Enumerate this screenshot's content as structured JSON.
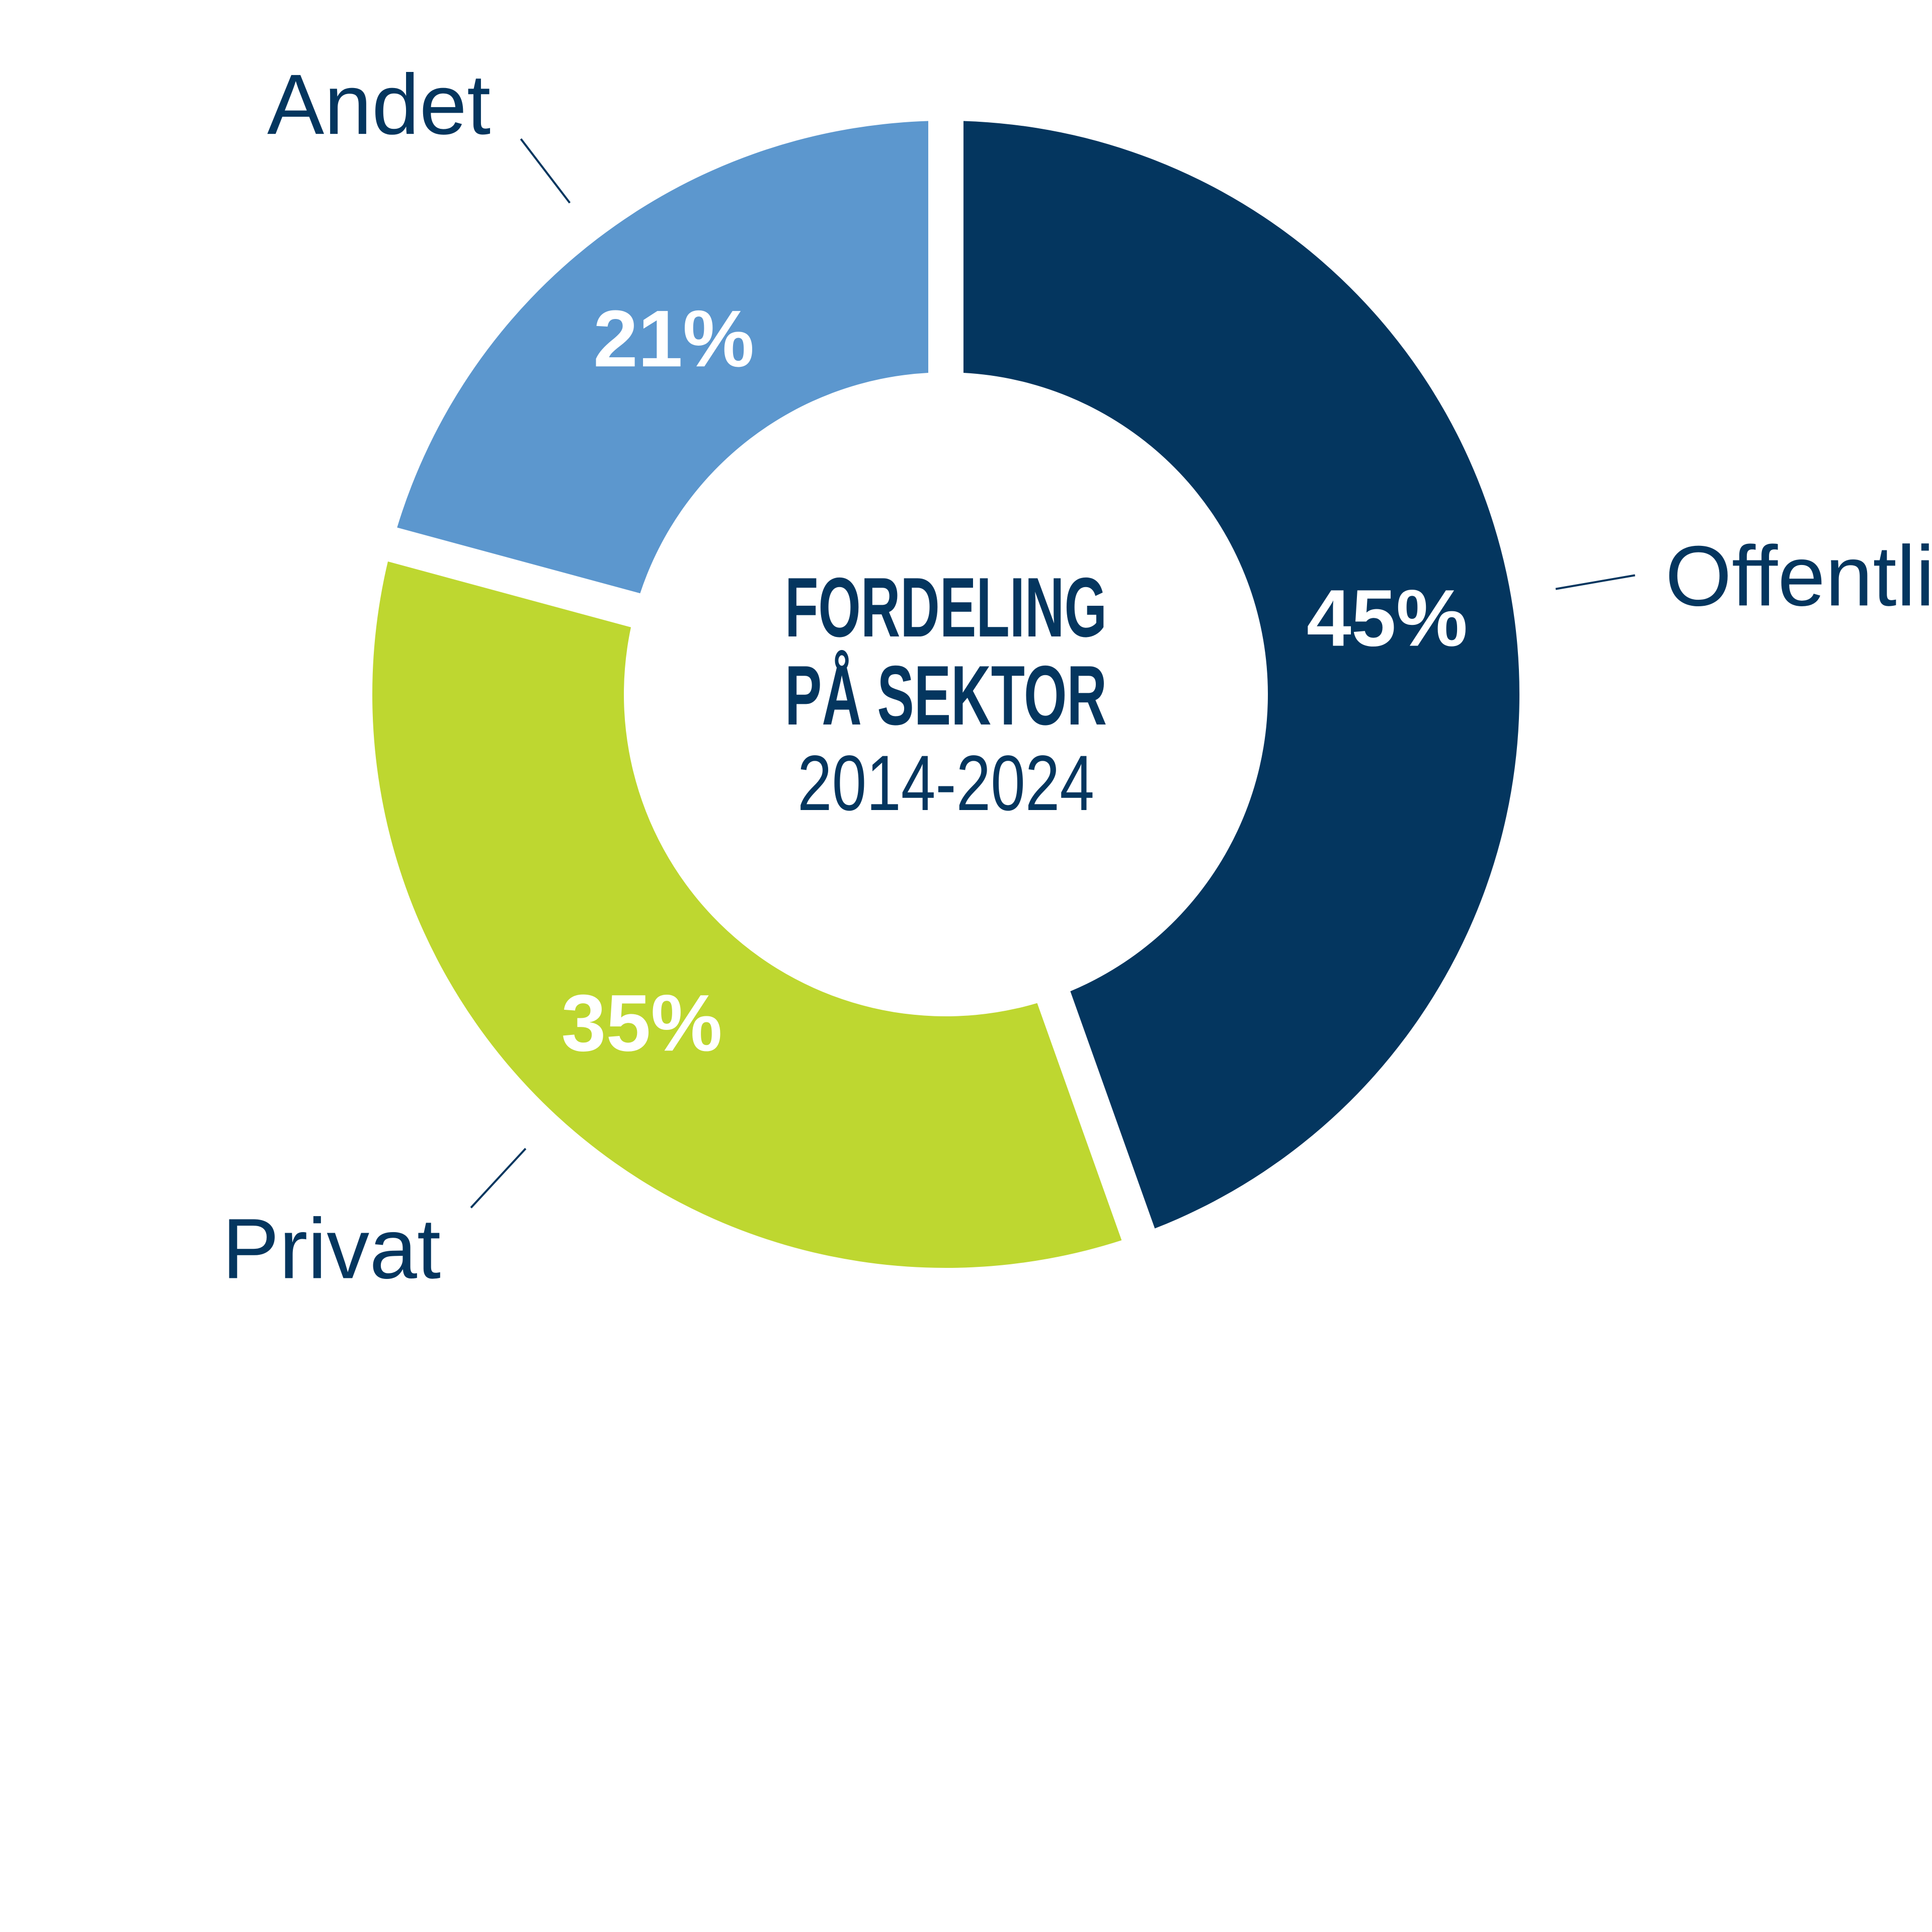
{
  "chart_data": {
    "type": "pie",
    "variant": "donut",
    "title_lines": [
      "FORDELING",
      "PÅ SEKTOR"
    ],
    "subtitle": "2014-2024",
    "legend": "none",
    "slices": [
      {
        "name": "Offentlig",
        "value": 45,
        "label": "45%",
        "color": "#04365f"
      },
      {
        "name": "Privat",
        "value": 35,
        "label": "35%",
        "color": "#bed730"
      },
      {
        "name": "Andet",
        "value": 21,
        "label": "21%",
        "color": "#5c97ce"
      }
    ]
  }
}
